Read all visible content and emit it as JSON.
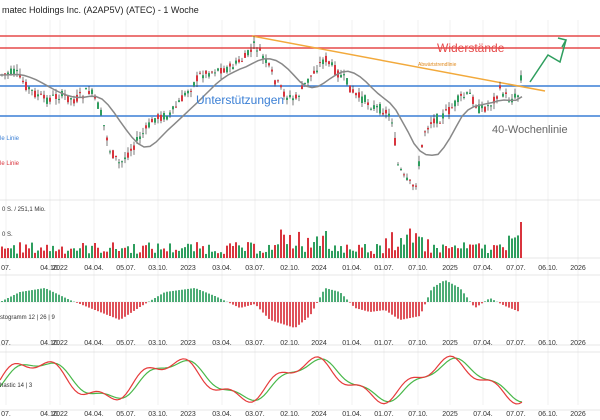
{
  "title": "matec Holdings Inc. (A2AP5V) (ATEC) - 1 Woche",
  "annotations": {
    "resistance": "Widerstände",
    "support": "Unterstützungen",
    "trendline": "Abwärtstrendlinie",
    "ma": "40-Wochenlinie",
    "blue_line": "le Linie",
    "red_line": "le Linie"
  },
  "volume_panel": {
    "label_top": "0 S. / 251,1 Mio.",
    "label_mid": "0 S."
  },
  "macd_panel": {
    "label": "stogramm 12 | 26 | 9"
  },
  "stoch_panel": {
    "label": "hastic 14 | 3"
  },
  "colors": {
    "up": "#2e9e5e",
    "down": "#d9343d",
    "resistance": "#e64a4a",
    "support": "#3a7fd5",
    "trend": "#f2a93b",
    "ma": "#888888",
    "stoch_k": "#e63b3b",
    "stoch_d": "#49b84a"
  },
  "chart_data": {
    "type": "line",
    "x_ticks": [
      "07.",
      "04.10.",
      "2022",
      "04.04.",
      "05.07.",
      "03.10.",
      "2023",
      "03.04.",
      "03.07.",
      "02.10.",
      "2024",
      "01.04.",
      "01.07.",
      "07.10.",
      "2025",
      "07.04.",
      "07.07.",
      "06.10.",
      "2026"
    ],
    "resistance_levels": [
      "upper",
      "lower"
    ],
    "support_levels": [
      "upper",
      "lower"
    ]
  }
}
